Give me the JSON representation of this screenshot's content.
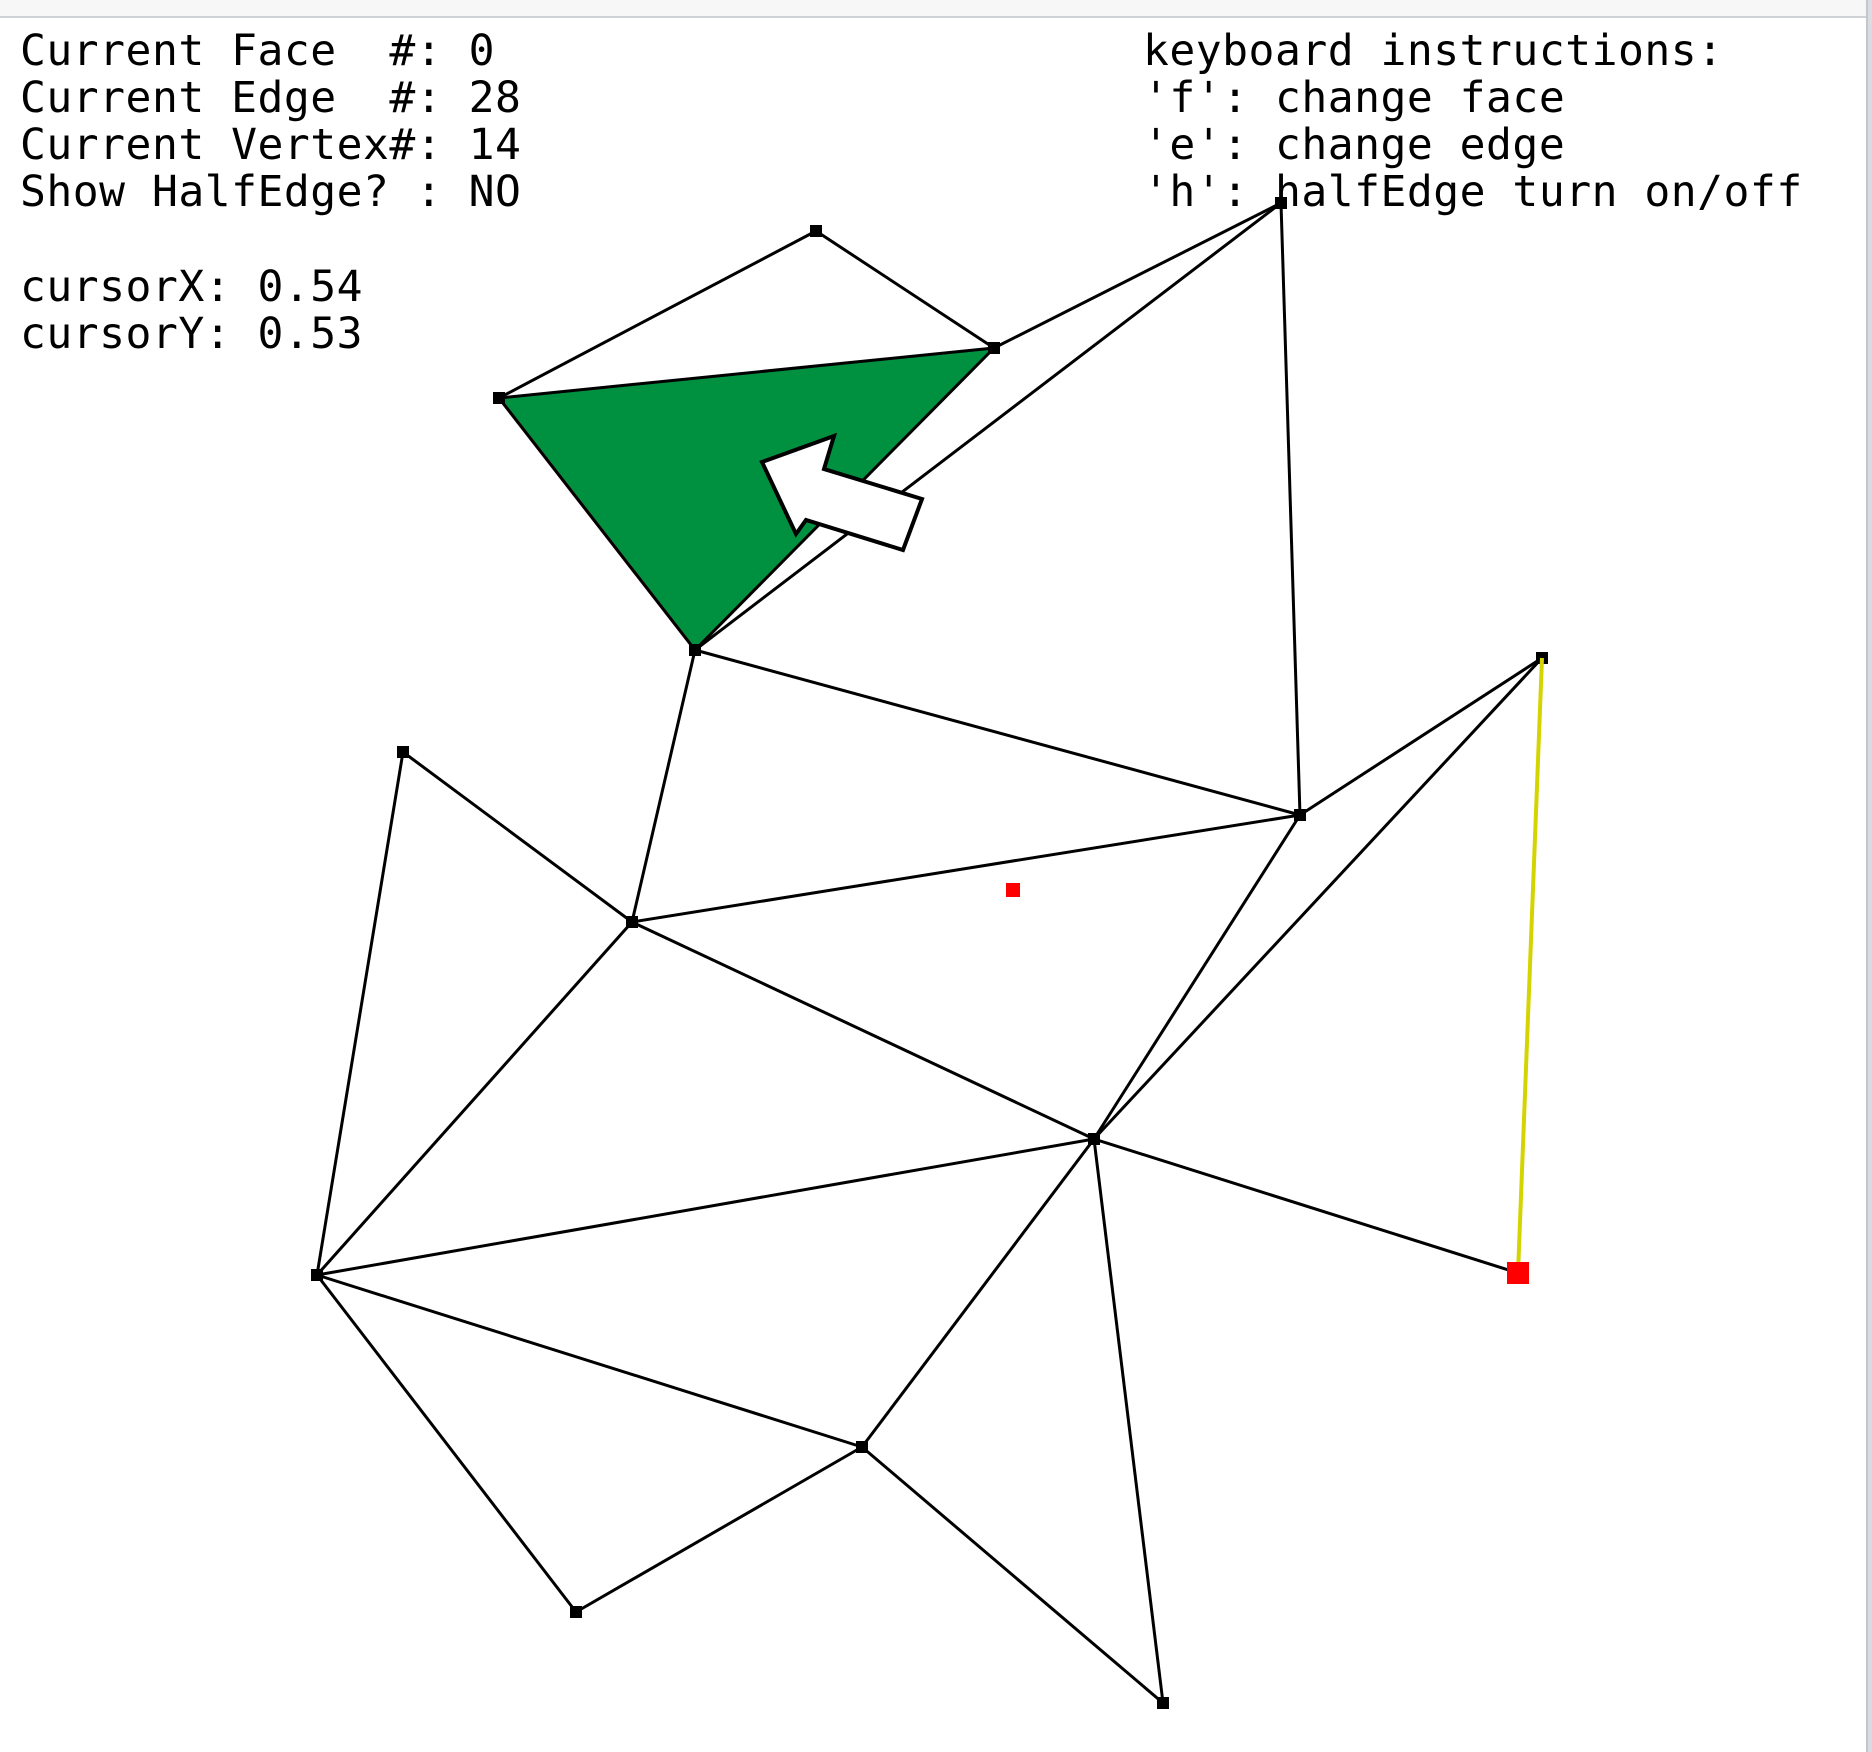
{
  "status": {
    "face_label": "Current Face  #:",
    "face_value": "0",
    "edge_label": "Current Edge  #:",
    "edge_value": "28",
    "vertex_label": "Current Vertex#:",
    "vertex_value": "14",
    "halfedge_label": "Show HalfEdge? :",
    "halfedge_value": "NO"
  },
  "cursor": {
    "x_label": "cursorX:",
    "x_value": "0.54",
    "y_label": "cursorY:",
    "y_value": "0.53"
  },
  "instructions": {
    "title": "keyboard instructions:",
    "lines": [
      "'f': change face",
      "'e': change edge",
      "'h': halfEdge turn on/off"
    ]
  },
  "colors": {
    "background": "#ffffff",
    "edge": "#000000",
    "selected_face_fill": "#009140",
    "selected_face_outline": "#ff2a2a",
    "selected_edge": "#d4d400",
    "selected_vertex": "#ff0000",
    "face_centroid": "#ff0000"
  },
  "icons": {
    "cursor": "arrow-cursor-icon"
  }
}
